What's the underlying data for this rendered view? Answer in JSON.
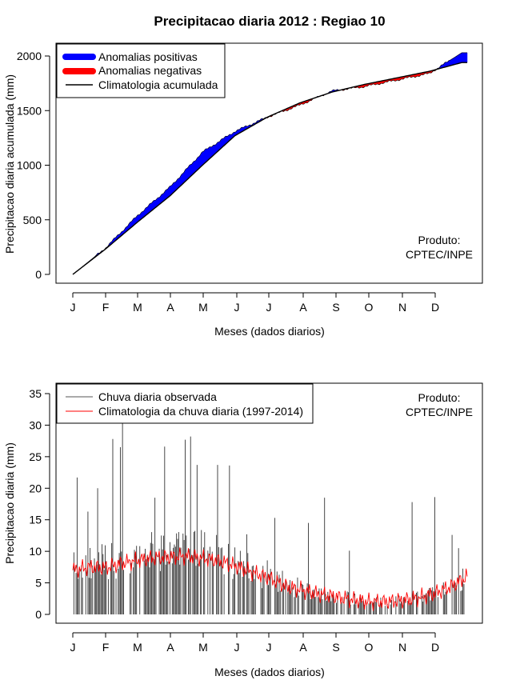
{
  "title": "Precipitacao diaria 2012 : Regiao 10",
  "chart_data": [
    {
      "type": "area",
      "name": "accumulated",
      "xlabel": "Meses (dados diarios)",
      "ylabel": "Precipitacao diaria acumulada (mm)",
      "ylim": [
        0,
        2000
      ],
      "yticks": [
        0,
        500,
        1000,
        1500,
        2000
      ],
      "month_labels": [
        "J",
        "F",
        "M",
        "A",
        "M",
        "J",
        "J",
        "A",
        "S",
        "O",
        "N",
        "D"
      ],
      "legend": [
        "Anomalias positivas",
        "Anomalias negativas",
        "Climatologia acumulada"
      ],
      "annotation": [
        "Produto:",
        "CPTEC/INPE"
      ],
      "colors": {
        "positive": "#0000ff",
        "negative": "#ff0000",
        "line": "#000000"
      },
      "x_days": [
        0,
        30,
        60,
        90,
        120,
        150,
        180,
        210,
        240,
        270,
        300,
        330,
        360
      ],
      "climatology": [
        0,
        230,
        480,
        720,
        1000,
        1270,
        1440,
        1570,
        1670,
        1740,
        1800,
        1860,
        1940
      ],
      "observed": [
        0,
        240,
        540,
        800,
        1120,
        1310,
        1440,
        1550,
        1680,
        1720,
        1780,
        1840,
        2030
      ]
    },
    {
      "type": "bar",
      "name": "daily",
      "xlabel": "Meses (dados diarios)",
      "ylabel": "Precipitacao diaria (mm)",
      "ylim": [
        0,
        35
      ],
      "yticks": [
        0,
        5,
        10,
        15,
        20,
        25,
        30,
        35
      ],
      "month_labels": [
        "J",
        "F",
        "M",
        "A",
        "M",
        "J",
        "J",
        "A",
        "S",
        "O",
        "N",
        "D"
      ],
      "legend": [
        "Chuva diaria observada",
        "Climatologia da chuva diaria (1997-2014)"
      ],
      "annotation": [
        "Produto:",
        "CPTEC/INPE"
      ],
      "colors": {
        "observed": "#000000",
        "climatology": "#ff0000"
      },
      "x_days": [
        0,
        30,
        60,
        90,
        120,
        150,
        180,
        210,
        240,
        270,
        300,
        330,
        360
      ],
      "observed_peaks": [
        {
          "day": 4,
          "value": 21.7
        },
        {
          "day": 14,
          "value": 16.3
        },
        {
          "day": 23,
          "value": 20.0
        },
        {
          "day": 37,
          "value": 27.8
        },
        {
          "day": 44,
          "value": 26.5
        },
        {
          "day": 46,
          "value": 30.5
        },
        {
          "day": 76,
          "value": 18.5
        },
        {
          "day": 85,
          "value": 26.6
        },
        {
          "day": 104,
          "value": 27.7
        },
        {
          "day": 109,
          "value": 28.2
        },
        {
          "day": 115,
          "value": 23.7
        },
        {
          "day": 134,
          "value": 23.7
        },
        {
          "day": 145,
          "value": 23.6
        },
        {
          "day": 161,
          "value": 12.7
        },
        {
          "day": 187,
          "value": 15.3
        },
        {
          "day": 218,
          "value": 14.5
        },
        {
          "day": 233,
          "value": 18.5
        },
        {
          "day": 256,
          "value": 10.1
        },
        {
          "day": 314,
          "value": 17.8
        },
        {
          "day": 335,
          "value": 18.6
        },
        {
          "day": 351,
          "value": 12.6
        },
        {
          "day": 357,
          "value": 10.5
        }
      ],
      "climatology": [
        7.0,
        7.5,
        7.4,
        8.1,
        8.6,
        9.0,
        9.1,
        9.2,
        8.9,
        8.4,
        7.6,
        6.6,
        5.7,
        4.4,
        3.8,
        3.2,
        2.8,
        2.3,
        2.0,
        2.0,
        2.2,
        2.6,
        3.3,
        4.4,
        6.0
      ]
    }
  ]
}
